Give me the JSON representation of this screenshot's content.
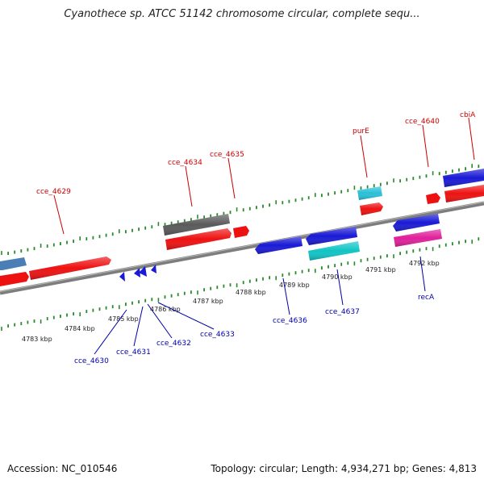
{
  "title": "Cyanothece sp. ATCC 51142 chromosome circular, complete sequ...",
  "footer": {
    "accession": "Accession: NC_010546",
    "info": "Topology: circular; Length: 4,934,271 bp; Genes: 4,813"
  },
  "colors": {
    "backbone": "#8a8a8a",
    "tick": "#2a8a2a",
    "upper_label": "#cc0000",
    "lower_label": "#0000aa",
    "red": "#ee1111",
    "blue": "#1a1ad6",
    "grey": "#5a5a5a",
    "steelblue": "#4a7fb5",
    "cyan": "#28c0d8",
    "teal": "#10c4c4",
    "magenta": "#e0209a"
  },
  "kbp_labels": [
    "4783 kbp",
    "4784 kbp",
    "4785 kbp",
    "4786 kbp",
    "4787 kbp",
    "4788 kbp",
    "4789 kbp",
    "4790 kbp",
    "4791 kbp",
    "4792 kbp"
  ],
  "upper_labels": [
    "cce_4629",
    "cce_4634",
    "cce_4635",
    "purE",
    "cce_4640",
    "cbiA"
  ],
  "lower_labels": [
    "cce_4630",
    "cce_4631",
    "cce_4632",
    "cce_4633",
    "cce_4636",
    "cce_4637",
    "recA"
  ]
}
